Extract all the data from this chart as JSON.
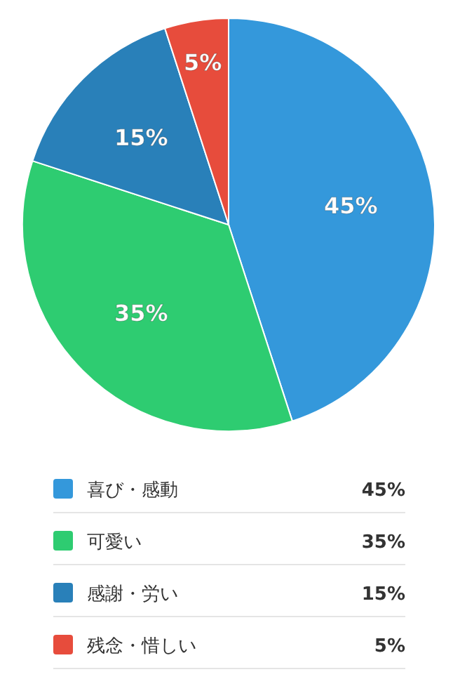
{
  "chart_data": {
    "type": "pie",
    "categories": [
      "喜び・感動",
      "可愛い",
      "感謝・労い",
      "残念・惜しい"
    ],
    "values": [
      45,
      35,
      15,
      5
    ],
    "colors": [
      "#3498db",
      "#2ecc71",
      "#2980b9",
      "#e74c3c"
    ],
    "value_labels": [
      "45%",
      "35%",
      "15%",
      "5%"
    ],
    "legend": "bottom"
  }
}
